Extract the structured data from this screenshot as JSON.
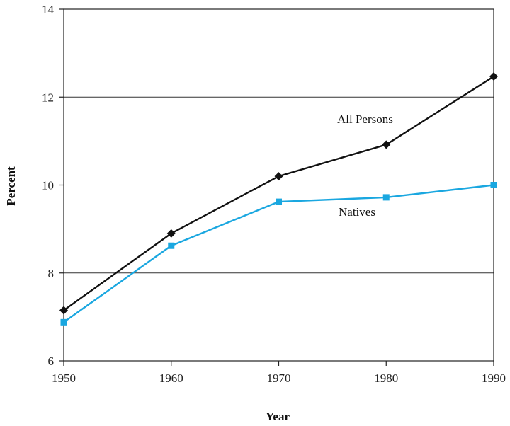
{
  "chart_data": {
    "type": "line",
    "x": [
      1950,
      1960,
      1970,
      1980,
      1990
    ],
    "xlabel": "Year",
    "ylabel": "Percent",
    "xlim": [
      1950,
      1990
    ],
    "ylim": [
      6,
      14
    ],
    "x_ticks": [
      "1950",
      "1960",
      "1970",
      "1980",
      "1990"
    ],
    "y_ticks": [
      "6",
      "8",
      "10",
      "12",
      "14"
    ],
    "grid": "horizontal",
    "series": [
      {
        "name": "All Persons",
        "values": [
          7.15,
          8.9,
          10.2,
          10.92,
          12.47
        ],
        "color": "#111111",
        "marker": "diamond"
      },
      {
        "name": "Natives",
        "values": [
          6.88,
          8.62,
          9.62,
          9.72,
          10.0
        ],
        "color": "#1aa7e0",
        "marker": "square"
      }
    ]
  }
}
